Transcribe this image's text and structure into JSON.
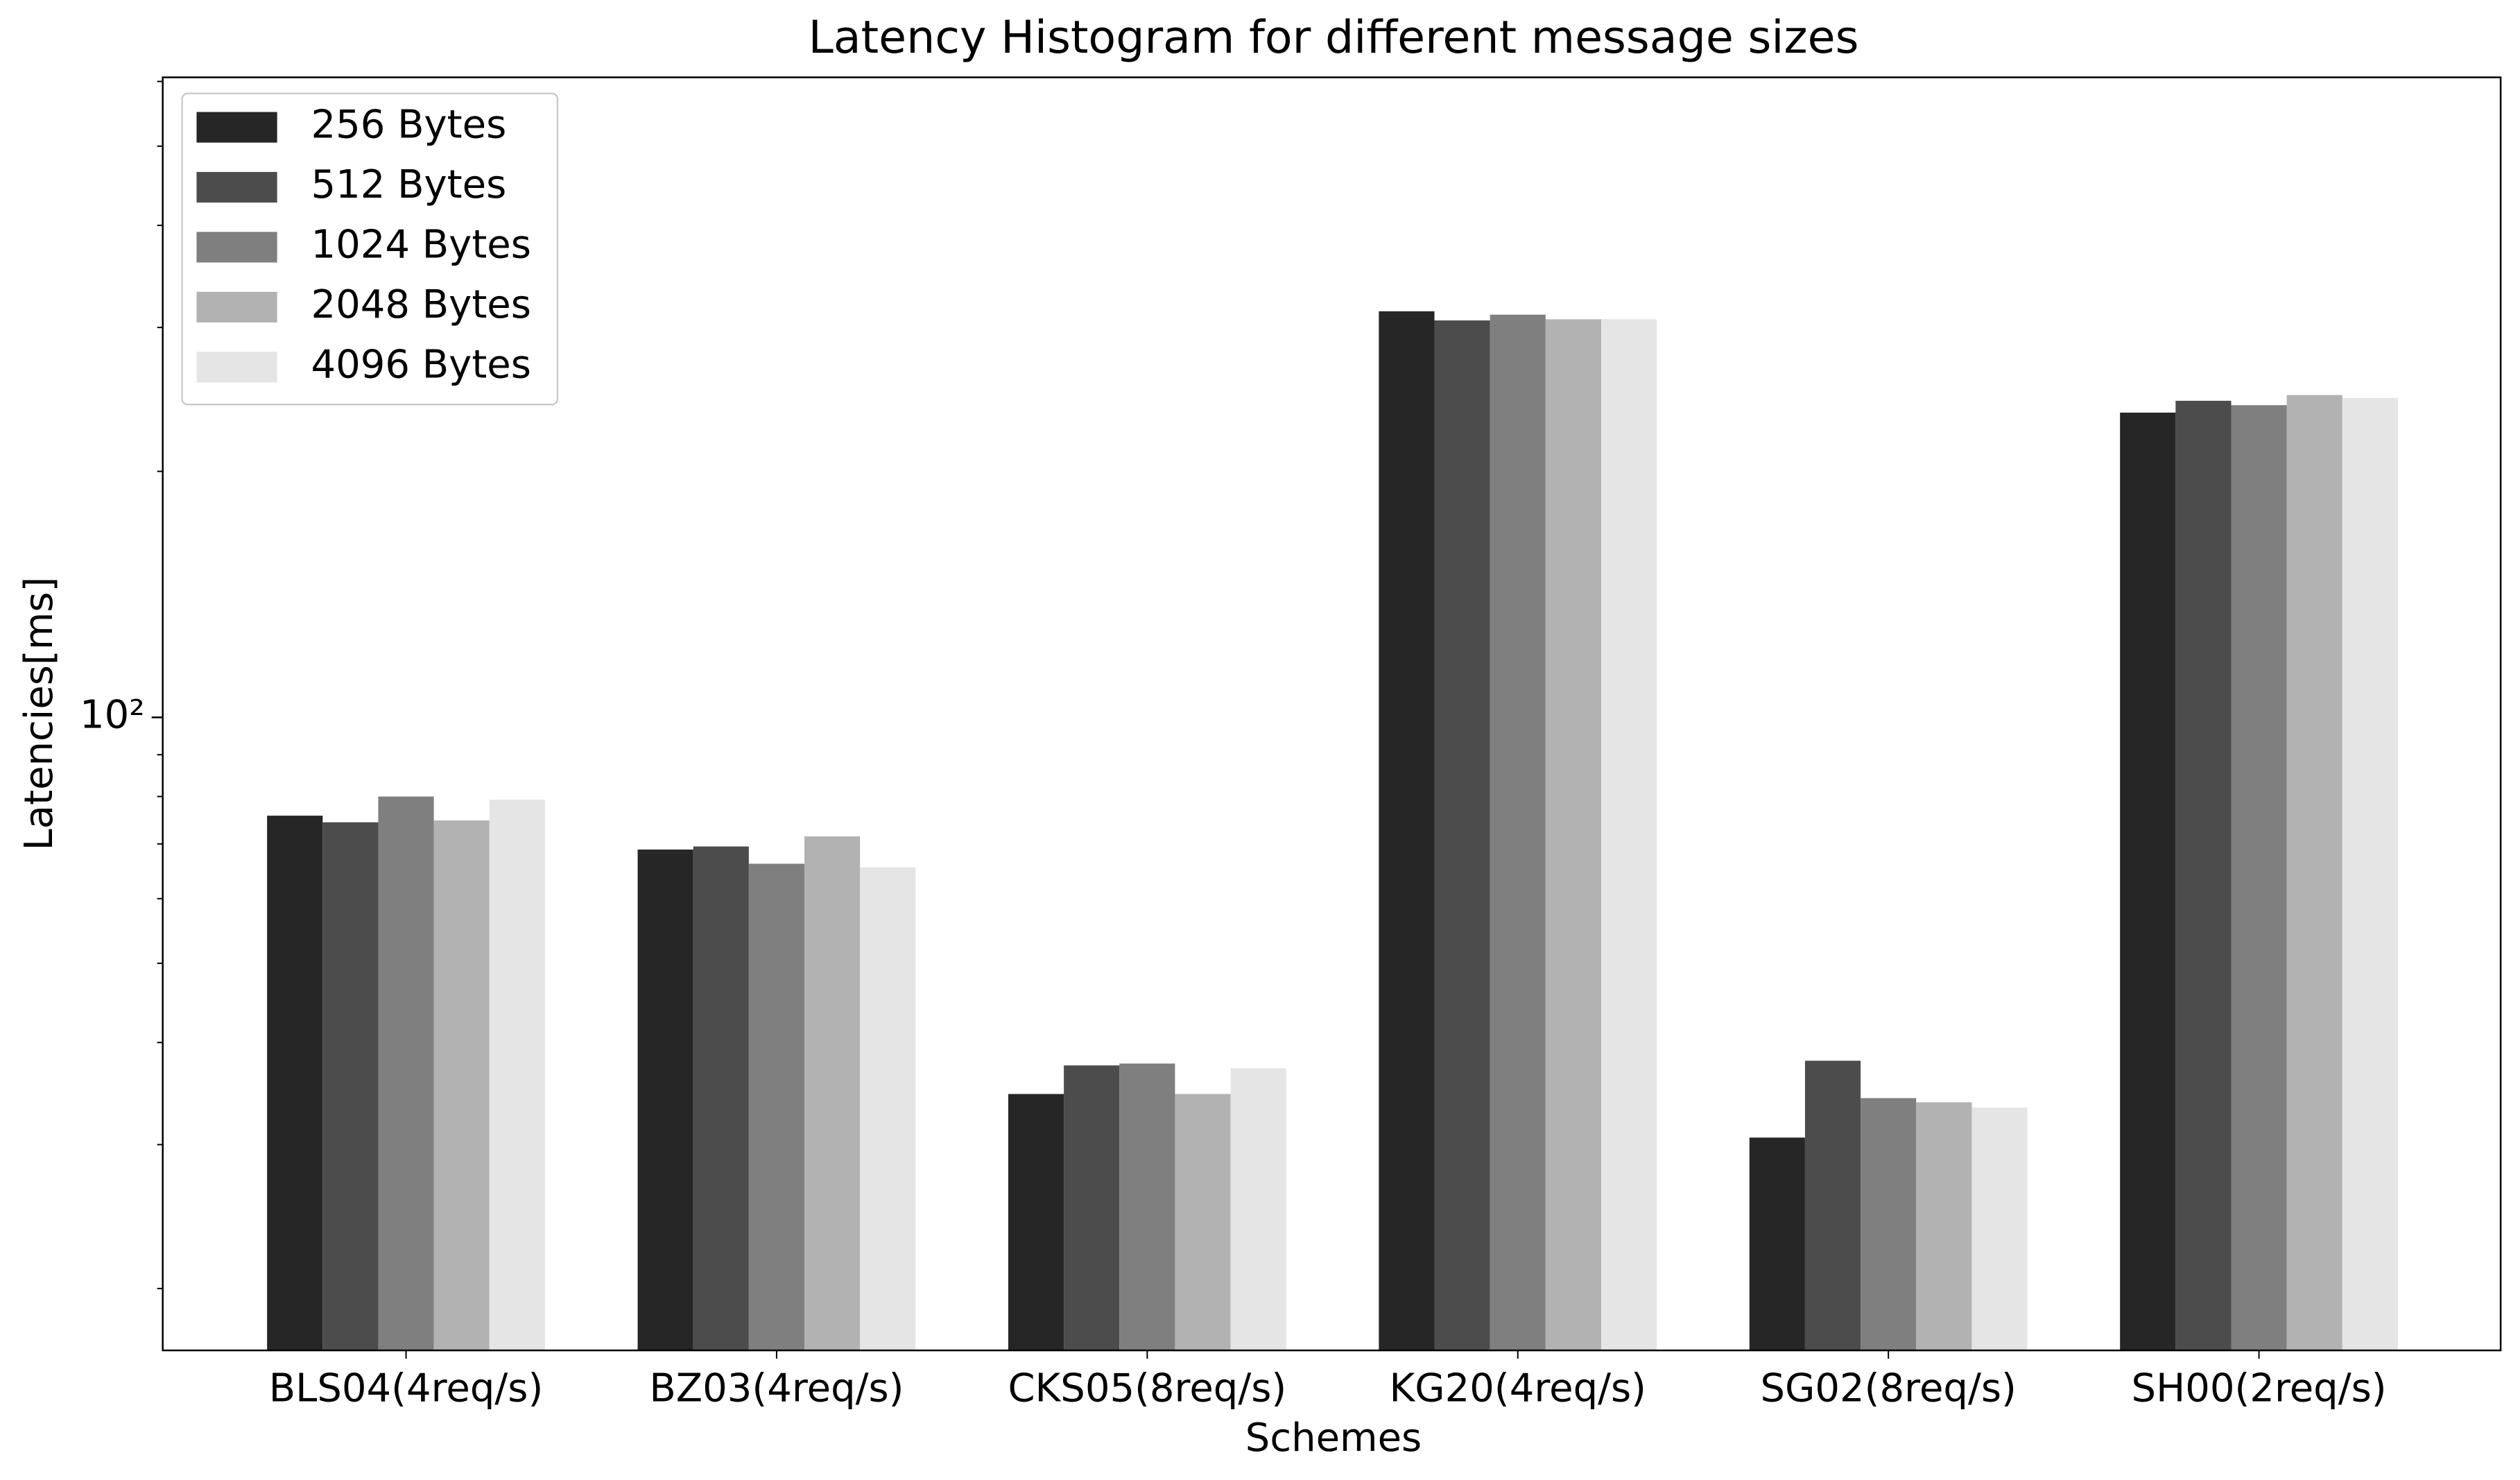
{
  "chart_data": {
    "type": "bar",
    "title": "Latency Histogram for different message sizes",
    "x_label": "Schemes",
    "y_label": "Latencies[ms]",
    "log_y": true,
    "categories": [
      "BLS04(4req/s)",
      "BZ03(4req/s)",
      "CKS05(8req/s)",
      "KG20(4req/s)",
      "SG02(8req/s)",
      "SH00(2req/s)"
    ],
    "series": [
      {
        "name": "256 Bytes",
        "color": "#262626",
        "values": [
          75.8,
          68.9,
          34.6,
          314,
          30.6,
          236
        ]
      },
      {
        "name": "512 Bytes",
        "color": "#4c4c4c",
        "values": [
          74.4,
          69.5,
          37.5,
          306,
          38.0,
          244
        ]
      },
      {
        "name": "1024 Bytes",
        "color": "#7f7f7f",
        "values": [
          80.0,
          66.2,
          37.7,
          311,
          34.2,
          241
        ]
      },
      {
        "name": "2048 Bytes",
        "color": "#b2b2b2",
        "values": [
          74.8,
          71.5,
          34.6,
          307,
          33.8,
          248
        ]
      },
      {
        "name": "4096 Bytes",
        "color": "#e5e5e5",
        "values": [
          79.3,
          65.5,
          37.2,
          307,
          33.3,
          246
        ]
      }
    ],
    "ylim": [
      16.8,
      607
    ],
    "yticks": [
      {
        "value": 100,
        "label": "10²"
      }
    ],
    "minor_yticks": [
      20,
      30,
      40,
      50,
      60,
      70,
      80,
      90,
      200,
      300,
      400,
      500,
      600
    ],
    "legend": "upper left",
    "grid": false
  }
}
